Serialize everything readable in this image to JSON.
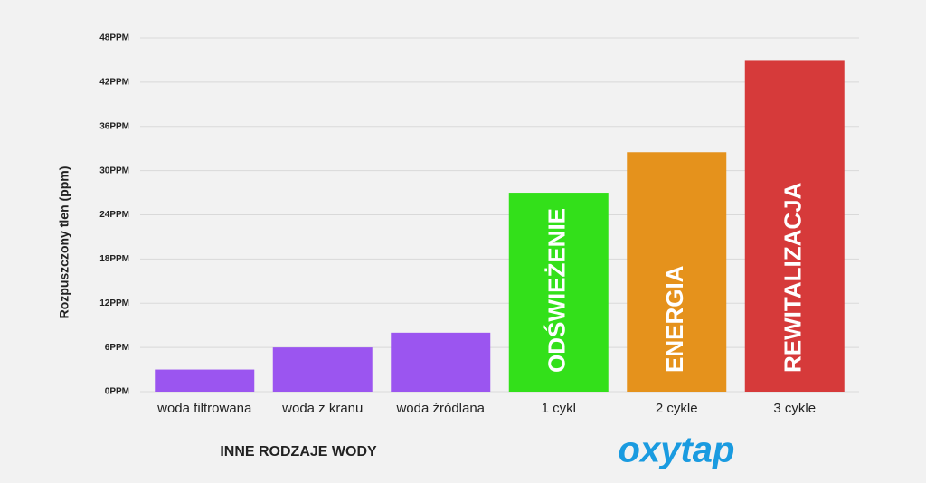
{
  "chart_data": {
    "type": "bar",
    "y_axis_label": "Rozpuszczony tlen (ppm)",
    "categories": [
      "woda filtrowana",
      "woda z kranu",
      "woda źródlana",
      "1 cykl",
      "2 cykle",
      "3 cykle"
    ],
    "values": [
      3,
      6,
      8,
      27,
      32.5,
      45
    ],
    "colors": [
      "#9b55f0",
      "#9b55f0",
      "#9b55f0",
      "#33e01a",
      "#e5921c",
      "#d63a3a"
    ],
    "bar_labels": [
      null,
      null,
      null,
      "ODŚWIEŻENIE",
      "ENERGIA",
      "REWITALIZACJA"
    ],
    "group_label": "INNE RODZAJE WODY",
    "logo": "oxytap",
    "ylim": [
      0,
      48
    ],
    "yticks": [
      {
        "value": 0,
        "label": "0PPM"
      },
      {
        "value": 6,
        "label": "6PPM"
      },
      {
        "value": 12,
        "label": "12PPM"
      },
      {
        "value": 18,
        "label": "18PPM"
      },
      {
        "value": 24,
        "label": "24PPM"
      },
      {
        "value": 30,
        "label": "30PPM"
      },
      {
        "value": 36,
        "label": "36PPM"
      },
      {
        "value": 42,
        "label": "42PPM"
      },
      {
        "value": 48,
        "label": "48PPM"
      }
    ],
    "grid": true
  }
}
